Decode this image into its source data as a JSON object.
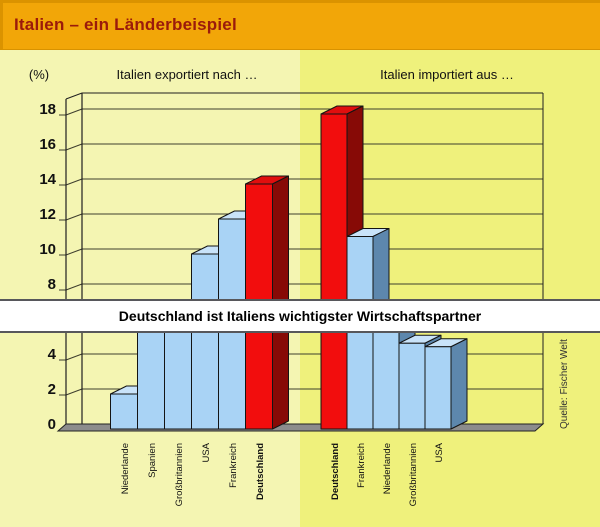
{
  "header": {
    "title": "Italien – ein Länderbeispiel"
  },
  "legend_row": {
    "unit_label": "(%)",
    "export_title": "Italien exportiert nach …",
    "import_title": "Italien importiert aus …"
  },
  "banner": {
    "text": "Deutschland ist Italiens wichtigster Wirtschaftspartner"
  },
  "source_note": {
    "text": "Quelle: Fischer Welt"
  },
  "colors": {
    "header_bg": "#F2A608",
    "header_text": "#9B1A0B",
    "panel_export_bg": "#F4F5B2",
    "panel_import_bg": "#EFF17C",
    "bar_blue_front": "#A9D3F5",
    "bar_blue_top": "#C9E3F9",
    "bar_blue_side": "#5D87AD",
    "bar_red_front": "#F20D0D",
    "bar_red_top": "#E00E0E",
    "bar_red_side": "#870A06",
    "gridline": "#3E3E2E",
    "frame": "#1F1F1F",
    "floor": "#8C8C8C",
    "banner_bg": "#FFFFFF"
  },
  "chart_data": {
    "type": "bar",
    "style_3d": true,
    "unit": "%",
    "ylim": [
      0,
      18
    ],
    "ytick_step": 2,
    "grid": true,
    "legend_position": "none",
    "highlight_category": "Deutschland",
    "groups": [
      {
        "title": "Italien exportiert nach …",
        "categories": [
          "Niederlande",
          "Spanien",
          "Großbritannien",
          "USA",
          "Frankreich",
          "Deutschland"
        ],
        "values": [
          2,
          6.2,
          6.8,
          10,
          12,
          14
        ]
      },
      {
        "title": "Italien importiert aus …",
        "categories": [
          "Deutschland",
          "Frankreich",
          "Niederlande",
          "Großbritannien",
          "USA"
        ],
        "values": [
          18,
          11,
          6.5,
          4.9,
          4.7
        ]
      }
    ]
  }
}
